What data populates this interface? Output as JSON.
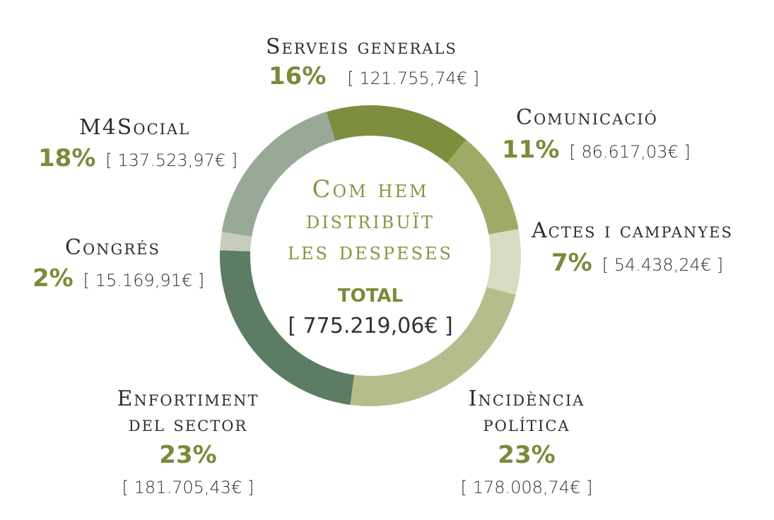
{
  "center": {
    "title_line1": "Com hem",
    "title_line2": "distribuït",
    "title_line3": "les despeses",
    "total_label": "TOTAL",
    "total_amount": "[ 775.219,06€ ]"
  },
  "chart_data": {
    "type": "pie",
    "variant": "donut",
    "slices": [
      {
        "label": "Serveis generals",
        "percent_label": "16%",
        "amount": "[ 121.755,74€ ]",
        "value": 121755.74,
        "color": "#7d8f3e"
      },
      {
        "label": "Comunicació",
        "percent_label": "11%",
        "amount": "[ 86.617,03€ ]",
        "value": 86617.03,
        "color": "#9eab67"
      },
      {
        "label": "Actes i campanyes",
        "percent_label": "7%",
        "amount": "[ 54.438,24€ ]",
        "value": 54438.24,
        "color": "#d6dcc1"
      },
      {
        "label": "Incidència política",
        "label_lines": [
          "Incidència",
          "política"
        ],
        "percent_label": "23%",
        "amount": "[ 178.008,74€ ]",
        "value": 178008.74,
        "color": "#b6bd8c"
      },
      {
        "label": "Enfortiment del sector",
        "label_lines": [
          "Enfortiment",
          "del sector"
        ],
        "percent_label": "23%",
        "amount": "[ 181.705,43€ ]",
        "value": 181705.43,
        "color": "#5c7c63"
      },
      {
        "label": "Congrés",
        "percent_label": "2%",
        "amount": "[ 15.169,91€ ]",
        "value": 15169.91,
        "color": "#c6cdba"
      },
      {
        "label": "M4Social",
        "percent_label": "18%",
        "amount": "[ 137.523,97€ ]",
        "value": 137523.97,
        "color": "#98aa96"
      }
    ]
  }
}
